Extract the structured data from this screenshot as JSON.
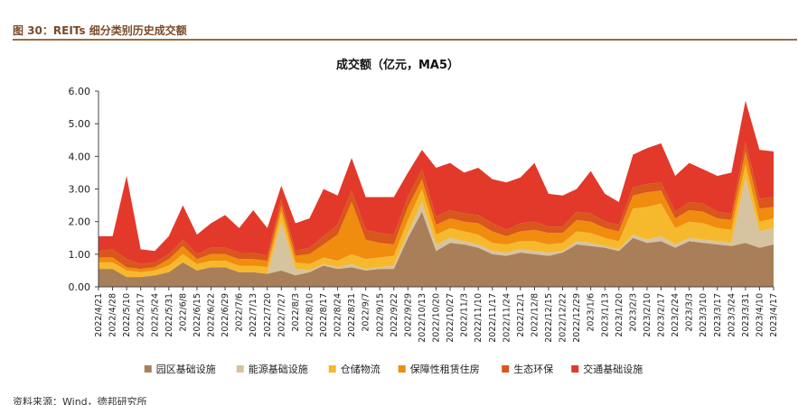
{
  "figure_caption": "图 30：REITs 细分类别历史成交额",
  "source_note": "资料来源：Wind，德邦研究所",
  "chart_data": {
    "type": "area",
    "stacked": true,
    "title": "成交额（亿元，MA5）",
    "xlabel": "",
    "ylabel": "",
    "ylim": [
      0,
      6
    ],
    "yticks": [
      "0.00",
      "1.00",
      "2.00",
      "3.00",
      "4.00",
      "5.00",
      "6.00"
    ],
    "grid": false,
    "legend_position": "bottom",
    "x_tick_labels": [
      "2022/4/21",
      "2022/4/28",
      "2022/5/10",
      "2022/5/17",
      "2022/5/24",
      "2022/5/31",
      "2022/6/8",
      "2022/6/15",
      "2022/6/22",
      "2022/6/29",
      "2022/7/6",
      "2022/7/13",
      "2022/7/20",
      "2022/7/27",
      "2022/8/3",
      "2022/8/10",
      "2022/8/17",
      "2022/8/24",
      "2022/8/31",
      "2022/9/7",
      "2022/9/15",
      "2022/9/22",
      "2022/9/29",
      "2022/10/13",
      "2022/10/20",
      "2022/10/27",
      "2022/11/3",
      "2022/11/10",
      "2022/11/17",
      "2022/11/24",
      "2022/12/1",
      "2022/12/8",
      "2022/12/15",
      "2022/12/22",
      "2022/12/29",
      "2023/1/6",
      "2023/1/13",
      "2023/1/20",
      "2023/2/3",
      "2023/2/10",
      "2023/2/17",
      "2023/2/24",
      "2023/3/3",
      "2023/3/10",
      "2023/3/17",
      "2023/3/24",
      "2023/3/31",
      "2023/4/10",
      "2023/4/17"
    ],
    "x_sample_count": 49,
    "series": [
      {
        "name": "园区基础设施",
        "color": "#a97f5a",
        "values": [
          0.55,
          0.55,
          0.3,
          0.3,
          0.35,
          0.45,
          0.75,
          0.5,
          0.6,
          0.6,
          0.45,
          0.45,
          0.4,
          0.5,
          0.35,
          0.45,
          0.65,
          0.55,
          0.6,
          0.5,
          0.55,
          0.55,
          1.5,
          2.3,
          1.1,
          1.35,
          1.3,
          1.2,
          1.0,
          0.95,
          1.05,
          1.0,
          0.95,
          1.05,
          1.3,
          1.25,
          1.2,
          1.1,
          1.5,
          1.35,
          1.4,
          1.2,
          1.4,
          1.35,
          1.3,
          1.25,
          1.35,
          1.2,
          1.3
        ]
      },
      {
        "name": "能源基础设施",
        "color": "#d6c3a0",
        "values": [
          0.0,
          0.0,
          0.0,
          0.0,
          0.0,
          0.0,
          0.0,
          0.0,
          0.0,
          0.0,
          0.0,
          0.0,
          0.0,
          1.5,
          0.2,
          0.05,
          0.05,
          0.05,
          0.1,
          0.05,
          0.05,
          0.1,
          0.15,
          0.3,
          0.2,
          0.15,
          0.1,
          0.1,
          0.1,
          0.1,
          0.1,
          0.1,
          0.1,
          0.05,
          0.1,
          0.1,
          0.05,
          0.05,
          0.1,
          0.1,
          0.15,
          0.1,
          0.1,
          0.1,
          0.1,
          0.1,
          2.0,
          0.5,
          0.5
        ]
      },
      {
        "name": "仓储物流",
        "color": "#f6b92e",
        "values": [
          0.2,
          0.2,
          0.2,
          0.15,
          0.15,
          0.2,
          0.25,
          0.2,
          0.2,
          0.2,
          0.2,
          0.2,
          0.2,
          0.3,
          0.2,
          0.2,
          0.2,
          0.2,
          0.3,
          0.3,
          0.3,
          0.3,
          0.4,
          0.4,
          0.3,
          0.3,
          0.3,
          0.3,
          0.25,
          0.25,
          0.25,
          0.3,
          0.25,
          0.25,
          0.3,
          0.3,
          0.25,
          0.25,
          0.8,
          1.0,
          1.0,
          0.5,
          0.5,
          0.5,
          0.4,
          0.4,
          0.4,
          0.3,
          0.3
        ]
      },
      {
        "name": "保障性租赁住房",
        "color": "#f08c0e",
        "values": [
          0.15,
          0.15,
          0.1,
          0.1,
          0.1,
          0.2,
          0.25,
          0.15,
          0.2,
          0.2,
          0.2,
          0.2,
          0.2,
          0.2,
          0.2,
          0.3,
          0.4,
          0.8,
          1.6,
          0.6,
          0.45,
          0.35,
          0.4,
          0.3,
          0.3,
          0.3,
          0.3,
          0.35,
          0.35,
          0.25,
          0.3,
          0.35,
          0.35,
          0.3,
          0.35,
          0.35,
          0.3,
          0.3,
          0.4,
          0.45,
          0.4,
          0.3,
          0.35,
          0.35,
          0.3,
          0.3,
          0.4,
          0.4,
          0.35
        ]
      },
      {
        "name": "生态环保",
        "color": "#d9561c",
        "values": [
          0.2,
          0.25,
          0.25,
          0.15,
          0.15,
          0.15,
          0.2,
          0.15,
          0.2,
          0.2,
          0.2,
          0.2,
          0.15,
          0.2,
          0.15,
          0.2,
          0.25,
          0.3,
          0.35,
          0.3,
          0.3,
          0.3,
          0.3,
          0.3,
          0.25,
          0.25,
          0.25,
          0.25,
          0.25,
          0.2,
          0.25,
          0.25,
          0.2,
          0.2,
          0.25,
          0.25,
          0.2,
          0.2,
          0.25,
          0.25,
          0.25,
          0.2,
          0.25,
          0.25,
          0.2,
          0.2,
          0.3,
          0.3,
          0.3
        ]
      },
      {
        "name": "交通基础设施",
        "color": "#e3392a",
        "values": [
          0.45,
          0.4,
          2.55,
          0.45,
          0.35,
          0.55,
          1.05,
          0.6,
          0.75,
          1.0,
          0.75,
          1.3,
          0.85,
          0.4,
          0.85,
          0.9,
          1.45,
          0.9,
          1.0,
          1.0,
          1.1,
          1.15,
          0.75,
          0.6,
          1.5,
          1.45,
          1.25,
          1.45,
          1.35,
          1.45,
          1.4,
          1.8,
          1.0,
          0.95,
          0.7,
          1.3,
          0.85,
          0.7,
          1.0,
          1.1,
          1.2,
          1.1,
          1.2,
          1.05,
          1.1,
          1.25,
          1.25,
          1.5,
          1.4
        ]
      }
    ]
  }
}
